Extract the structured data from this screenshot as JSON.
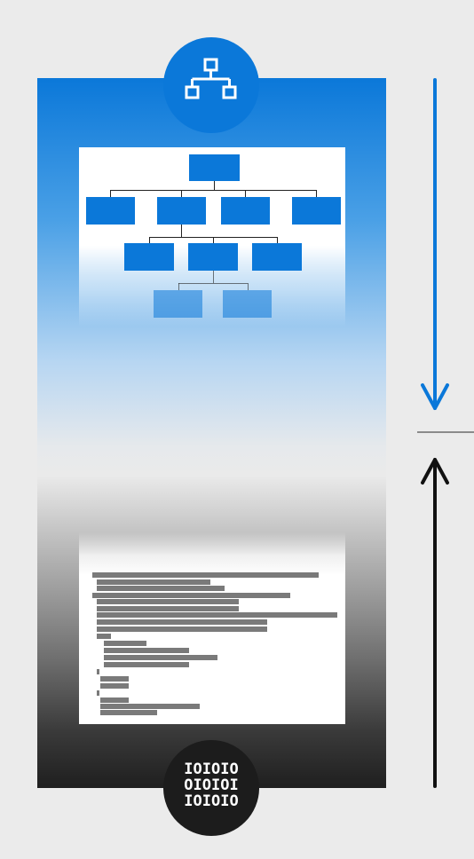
{
  "badges": {
    "top": {
      "icon": "hierarchy-icon",
      "color": "#0b78d9"
    },
    "bottom": {
      "icon": "binary-icon",
      "lines": [
        "IOIOIO",
        "OIOIOI",
        "IOIOIO"
      ],
      "color": "#1c1c1c"
    }
  },
  "arrows": {
    "down": {
      "direction": "down",
      "color": "#0b78d9"
    },
    "up": {
      "direction": "up",
      "color": "#111111"
    },
    "divider_color": "#8a8a8a"
  },
  "colors": {
    "accent_blue": "#0b78d9",
    "dark": "#1c1c1c",
    "background": "#ebebeb"
  }
}
